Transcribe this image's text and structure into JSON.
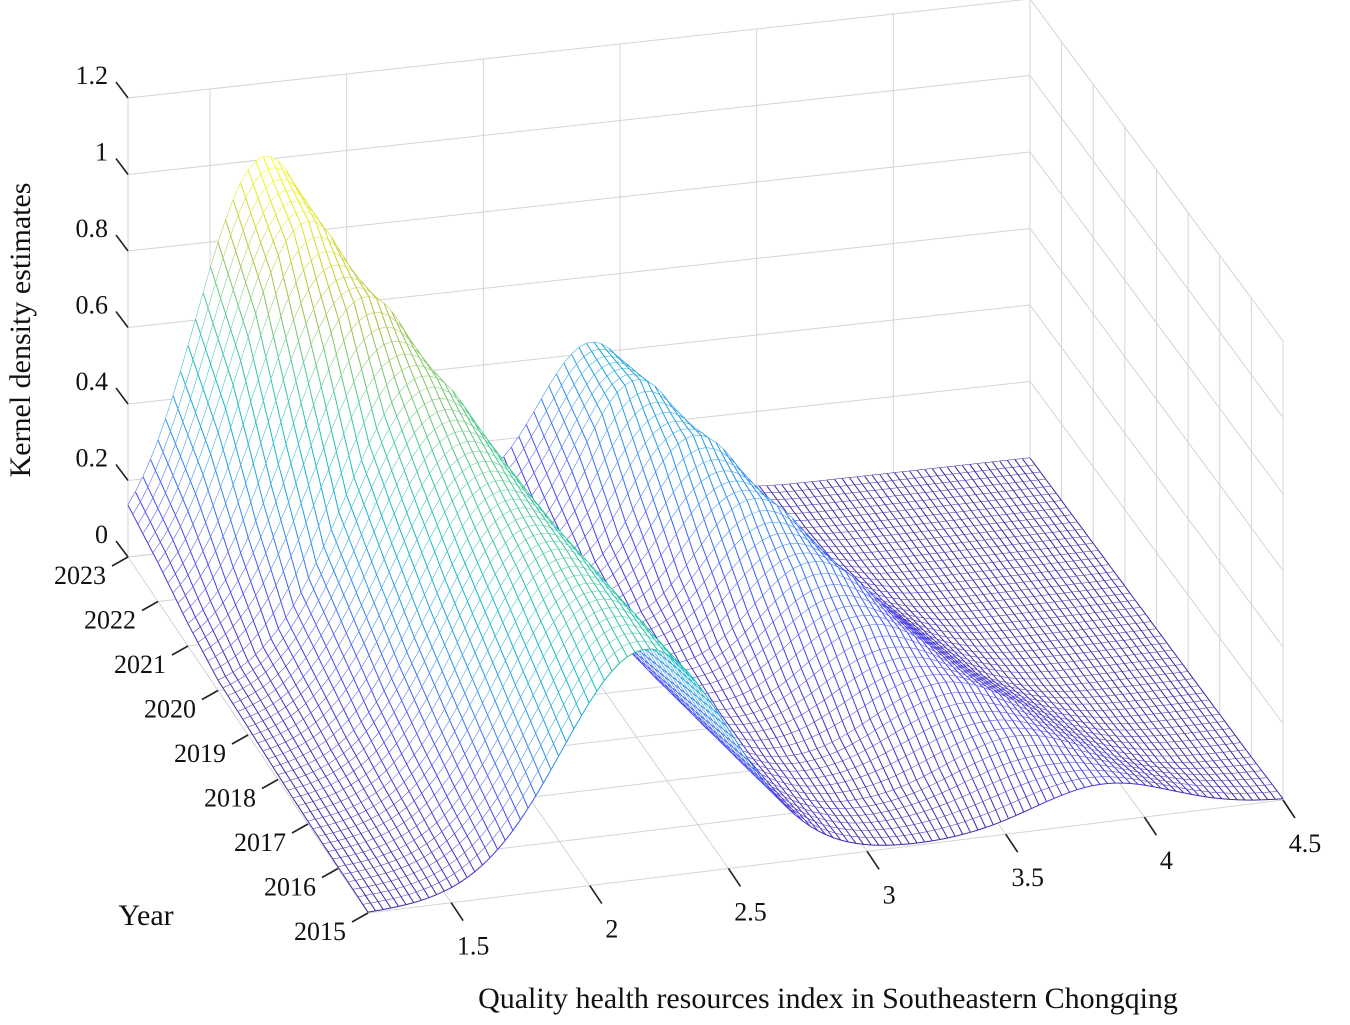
{
  "chart_data": {
    "type": "surface",
    "title": "",
    "xlabel": "Quality health resources index in Southeastern Chongqing",
    "ylabel": "Year",
    "zlabel": "Kernel density estimates",
    "x_ticks": [
      "1.5",
      "2",
      "2.5",
      "3",
      "3.5",
      "4",
      "4.5"
    ],
    "y_ticks": [
      "2015",
      "2016",
      "2017",
      "2018",
      "2019",
      "2020",
      "2021",
      "2022",
      "2023"
    ],
    "z_ticks": [
      "0",
      "0.2",
      "0.4",
      "0.6",
      "0.8",
      "1",
      "1.2"
    ],
    "xlim": [
      1.2,
      4.5
    ],
    "zlim": [
      0,
      1.2
    ],
    "colormap": [
      "#3e26a8",
      "#4743f8",
      "#2c8ff0",
      "#12bac5",
      "#4bc894",
      "#b4c13a",
      "#f9fb0e"
    ],
    "series": [
      {
        "name": "2015",
        "peaks": [
          {
            "center": 2.2,
            "height": 0.6,
            "width": 0.3
          },
          {
            "center": 3.85,
            "height": 0.1,
            "width": 0.25
          }
        ]
      },
      {
        "name": "2016",
        "peaks": [
          {
            "center": 2.15,
            "height": 0.62,
            "width": 0.3
          },
          {
            "center": 3.65,
            "height": 0.13,
            "width": 0.25
          }
        ]
      },
      {
        "name": "2017",
        "peaks": [
          {
            "center": 2.1,
            "height": 0.64,
            "width": 0.3
          },
          {
            "center": 3.5,
            "height": 0.17,
            "width": 0.25
          }
        ]
      },
      {
        "name": "2018",
        "peaks": [
          {
            "center": 2.05,
            "height": 0.66,
            "width": 0.3
          },
          {
            "center": 3.35,
            "height": 0.22,
            "width": 0.24
          }
        ]
      },
      {
        "name": "2019",
        "peaks": [
          {
            "center": 2.0,
            "height": 0.7,
            "width": 0.3
          },
          {
            "center": 3.25,
            "height": 0.28,
            "width": 0.23
          }
        ]
      },
      {
        "name": "2020",
        "peaks": [
          {
            "center": 1.95,
            "height": 0.76,
            "width": 0.29
          },
          {
            "center": 3.15,
            "height": 0.34,
            "width": 0.22
          }
        ]
      },
      {
        "name": "2021",
        "peaks": [
          {
            "center": 1.85,
            "height": 0.86,
            "width": 0.28
          },
          {
            "center": 3.05,
            "height": 0.4,
            "width": 0.21
          }
        ]
      },
      {
        "name": "2022",
        "peaks": [
          {
            "center": 1.75,
            "height": 0.95,
            "width": 0.26
          },
          {
            "center": 2.95,
            "height": 0.44,
            "width": 0.2
          }
        ]
      },
      {
        "name": "2023",
        "peaks": [
          {
            "center": 1.7,
            "height": 1.0,
            "width": 0.25
          },
          {
            "center": 2.9,
            "height": 0.42,
            "width": 0.2
          },
          {
            "center": 2.3,
            "height": 0.06,
            "width": 0.3
          }
        ]
      }
    ]
  }
}
